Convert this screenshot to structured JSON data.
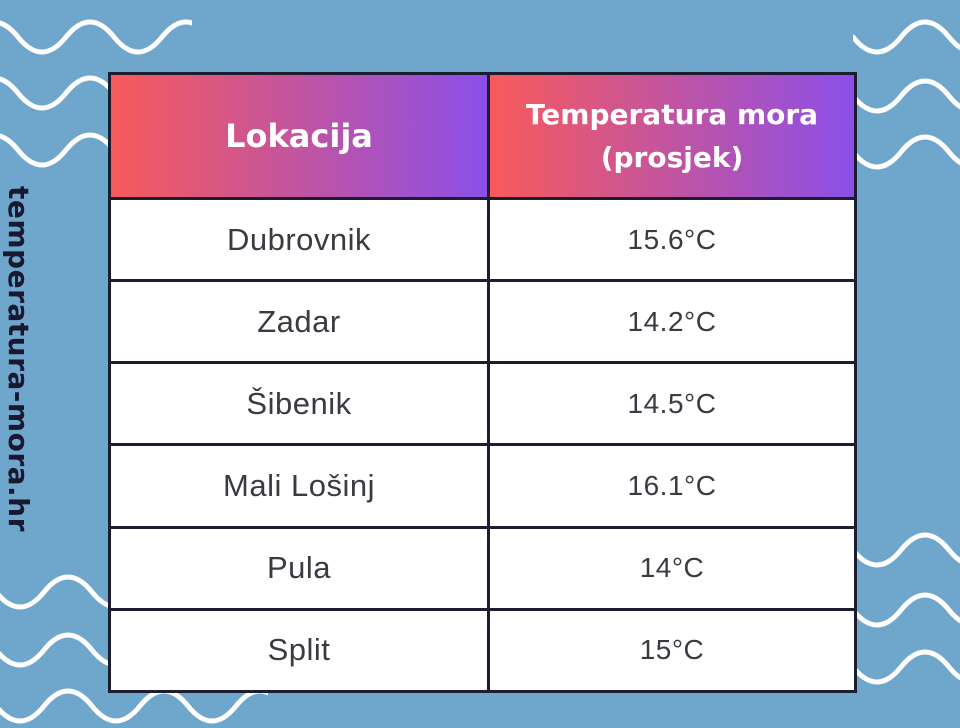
{
  "page": {
    "background_color": "#6FA6CC",
    "wave_color": "#FFFFFF"
  },
  "watermark": {
    "text": "temperatura-mora.hr",
    "color": "#181830"
  },
  "table": {
    "header": {
      "location_label": "Lokacija",
      "temperature_label": "Temperatura mora (prosjek)",
      "gradient_from": "#F85A5A",
      "gradient_to": "#8B4FE8",
      "text_color": "#FFFFFF"
    },
    "border_color": "#1D1D30",
    "row_background": "#FFFFFF",
    "row_text_color": "#3A3A42"
  },
  "chart_data": {
    "type": "table",
    "title": "",
    "columns": [
      "Lokacija",
      "Temperatura mora (prosjek)"
    ],
    "rows": [
      [
        "Dubrovnik",
        "15.6°C"
      ],
      [
        "Zadar",
        "14.2°C"
      ],
      [
        "Šibenik",
        "14.5°C"
      ],
      [
        "Mali Lošinj",
        "16.1°C"
      ],
      [
        "Pula",
        "14°C"
      ],
      [
        "Split",
        "15°C"
      ]
    ],
    "values": [
      {
        "location": "Dubrovnik",
        "avg_sea_temp_c": 15.6
      },
      {
        "location": "Zadar",
        "avg_sea_temp_c": 14.2
      },
      {
        "location": "Šibenik",
        "avg_sea_temp_c": 14.5
      },
      {
        "location": "Mali Lošinj",
        "avg_sea_temp_c": 16.1
      },
      {
        "location": "Pula",
        "avg_sea_temp_c": 14
      },
      {
        "location": "Split",
        "avg_sea_temp_c": 15
      }
    ],
    "unit": "°C"
  }
}
